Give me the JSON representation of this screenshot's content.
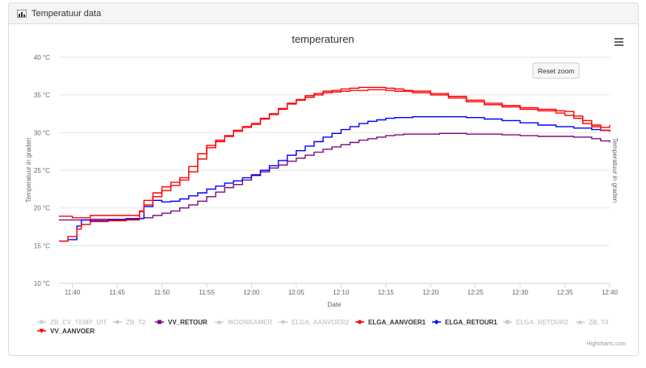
{
  "panel": {
    "title": "Temperatuur data",
    "icon": "bar-chart-icon"
  },
  "menu": {
    "icon": "hamburger-menu-icon"
  },
  "reset_zoom_label": "Reset zoom",
  "credits": "Highcharts.com",
  "chart_data": {
    "type": "line",
    "title": "temperaturen",
    "xlabel": "Date",
    "ylabel": "Temperatuur in graden",
    "ylabel_right": "Temperatuur in graden",
    "ylim": [
      10,
      40
    ],
    "y_ticks": [
      "10 °C",
      "15 °C",
      "20 °C",
      "25 °C",
      "30 °C",
      "35 °C",
      "40 °C"
    ],
    "y_tick_values": [
      10,
      15,
      20,
      25,
      30,
      35,
      40
    ],
    "x_ticks": [
      "11:40",
      "11:45",
      "11:50",
      "11:55",
      "12:00",
      "12:05",
      "12:10",
      "12:15",
      "12:20",
      "12:25",
      "12:30",
      "12:35",
      "12:40"
    ],
    "x_range_minutes": [
      -21.5,
      40
    ],
    "x_minute_origin": "12:00",
    "grid": true,
    "legend_position": "bottom",
    "legend": [
      {
        "name": "ZB_CV_TEMP_UIT",
        "color": "#cccccc",
        "visible": false,
        "marker": "circle"
      },
      {
        "name": "ZB_T2",
        "color": "#cccccc",
        "visible": false,
        "marker": "diamond"
      },
      {
        "name": "VV_RETOUR",
        "color": "#7b0e7a",
        "visible": true,
        "marker": "square"
      },
      {
        "name": "WOONKAMER",
        "color": "#cccccc",
        "visible": false,
        "marker": "triangle"
      },
      {
        "name": "ELGA_AANVOER2",
        "color": "#cccccc",
        "visible": false,
        "marker": "diamond"
      },
      {
        "name": "ELGA_AANVOER1",
        "color": "#ff0000",
        "visible": true,
        "marker": "circle"
      },
      {
        "name": "ELGA_RETOUR1",
        "color": "#0000ff",
        "visible": true,
        "marker": "diamond"
      },
      {
        "name": "ELGA_RETOUR2",
        "color": "#cccccc",
        "visible": false,
        "marker": "square"
      },
      {
        "name": "ZB_T4",
        "color": "#cccccc",
        "visible": false,
        "marker": "triangle"
      },
      {
        "name": "VV_AANVOER",
        "color": "#ff0000",
        "visible": true,
        "marker": "triangle-down"
      }
    ],
    "series": [
      {
        "name": "VV_RETOUR",
        "color": "#7b0e7a",
        "x": [
          -21.5,
          -20,
          -18,
          -16,
          -14,
          -12,
          -11,
          -10,
          -9,
          -8,
          -7,
          -6,
          -5,
          -4,
          -3,
          -2,
          -1,
          0,
          1,
          2,
          3,
          4,
          5,
          6,
          7,
          8,
          9,
          10,
          11,
          12,
          13,
          14,
          15,
          16,
          17,
          18,
          19,
          20,
          21,
          22,
          24,
          26,
          28,
          30,
          32,
          34,
          36,
          38,
          39,
          40
        ],
        "y": [
          18.4,
          18.4,
          18.5,
          18.5,
          18.6,
          18.7,
          19.0,
          19.3,
          19.6,
          20.0,
          20.4,
          20.9,
          21.5,
          22.1,
          22.7,
          23.1,
          23.7,
          24.3,
          24.8,
          25.3,
          25.7,
          26.2,
          26.6,
          27.0,
          27.4,
          27.8,
          28.1,
          28.4,
          28.7,
          29.0,
          29.2,
          29.4,
          29.6,
          29.7,
          29.8,
          29.8,
          29.8,
          29.8,
          29.9,
          29.9,
          29.8,
          29.8,
          29.7,
          29.6,
          29.5,
          29.5,
          29.4,
          29.2,
          28.9,
          28.7
        ]
      },
      {
        "name": "ELGA_RETOUR1",
        "color": "#0000ff",
        "x": [
          -21.5,
          -20.5,
          -19.5,
          -19,
          -18,
          -16,
          -14,
          -12.5,
          -12,
          -11,
          -10,
          -9,
          -8,
          -7,
          -6,
          -5,
          -4,
          -3,
          -2,
          -1,
          0,
          1,
          2,
          3,
          4,
          5,
          6,
          7,
          8,
          9,
          10,
          11,
          12,
          13,
          14,
          15,
          16,
          18,
          20,
          22,
          24,
          26,
          28,
          30,
          32,
          34,
          36,
          38,
          39,
          40
        ],
        "y": [
          15.6,
          15.8,
          17.6,
          18.4,
          18.3,
          18.4,
          18.5,
          18.6,
          20.2,
          21.0,
          20.8,
          20.9,
          21.2,
          21.6,
          22.0,
          22.5,
          22.9,
          23.3,
          23.6,
          24.0,
          24.4,
          25.0,
          25.6,
          26.3,
          27.0,
          27.6,
          28.2,
          28.8,
          29.4,
          29.9,
          30.4,
          30.8,
          31.2,
          31.5,
          31.7,
          31.9,
          32.0,
          32.1,
          32.1,
          32.1,
          32.0,
          31.8,
          31.6,
          31.3,
          31.0,
          30.8,
          30.6,
          30.4,
          30.3,
          30.2
        ]
      },
      {
        "name": "ELGA_AANVOER1",
        "color": "#ff0000",
        "x": [
          -21.5,
          -20.5,
          -19.5,
          -19,
          -18,
          -16,
          -14,
          -13,
          -12.5,
          -12,
          -11,
          -10,
          -9,
          -8,
          -7,
          -6,
          -5,
          -4,
          -3,
          -2,
          -1,
          0,
          1,
          2,
          3,
          4,
          5,
          6,
          7,
          8,
          9,
          10,
          11,
          12,
          13,
          14,
          15,
          16,
          17,
          18,
          20,
          22,
          24,
          26,
          28,
          30,
          32,
          34,
          35,
          36,
          37,
          38,
          39,
          40
        ],
        "y": [
          15.6,
          16.2,
          17.2,
          17.8,
          18.2,
          18.3,
          18.4,
          18.4,
          19.5,
          21.0,
          22.0,
          22.8,
          23.4,
          24.0,
          25.5,
          27.2,
          28.3,
          29.0,
          29.6,
          30.3,
          30.8,
          31.2,
          31.9,
          32.5,
          33.2,
          33.9,
          34.4,
          34.9,
          35.2,
          35.5,
          35.6,
          35.8,
          35.9,
          36.0,
          36.0,
          36.0,
          35.9,
          35.8,
          35.6,
          35.5,
          35.2,
          34.8,
          34.3,
          33.9,
          33.6,
          33.3,
          33.1,
          32.9,
          32.8,
          32.2,
          31.6,
          31.0,
          30.7,
          31.0
        ]
      },
      {
        "name": "VV_AANVOER",
        "color": "#ff0000",
        "x": [
          -21.5,
          -20,
          -18,
          -16,
          -14,
          -13,
          -12.5,
          -12,
          -11,
          -10,
          -9,
          -8,
          -7,
          -6,
          -5,
          -4,
          -3,
          -2,
          -1,
          0,
          1,
          2,
          3,
          4,
          5,
          6,
          7,
          8,
          9,
          10,
          11,
          12,
          13,
          14,
          15,
          16,
          18,
          20,
          22,
          24,
          26,
          28,
          30,
          32,
          34,
          35,
          36,
          37,
          38,
          39,
          40
        ],
        "y": [
          18.9,
          18.7,
          19.0,
          19.0,
          19.0,
          19.0,
          19.6,
          20.4,
          21.5,
          22.3,
          23.0,
          23.7,
          24.8,
          26.5,
          28.0,
          28.8,
          29.5,
          30.2,
          30.7,
          31.1,
          31.8,
          32.4,
          33.1,
          33.8,
          34.3,
          34.7,
          35.0,
          35.3,
          35.4,
          35.5,
          35.6,
          35.6,
          35.7,
          35.7,
          35.6,
          35.5,
          35.3,
          35.0,
          34.6,
          34.1,
          33.7,
          33.4,
          33.1,
          32.9,
          32.6,
          32.3,
          31.9,
          31.2,
          30.8,
          30.3,
          30.1
        ]
      }
    ]
  }
}
